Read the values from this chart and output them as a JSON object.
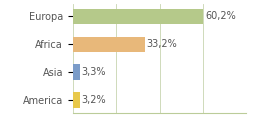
{
  "categories": [
    "Europa",
    "Africa",
    "Asia",
    "America"
  ],
  "values": [
    60.2,
    33.2,
    3.3,
    3.2
  ],
  "labels": [
    "60,2%",
    "33,2%",
    "3,3%",
    "3,2%"
  ],
  "bar_colors": [
    "#b5c98a",
    "#e8b87a",
    "#7b9cc8",
    "#e8c84a"
  ],
  "background_color": "#ffffff",
  "text_color": "#555555",
  "grid_color": "#c8d4b0",
  "figsize": [
    2.8,
    1.2
  ],
  "dpi": 100,
  "xlim": [
    0,
    80
  ],
  "bar_height": 0.55,
  "label_fontsize": 7,
  "tick_fontsize": 7
}
